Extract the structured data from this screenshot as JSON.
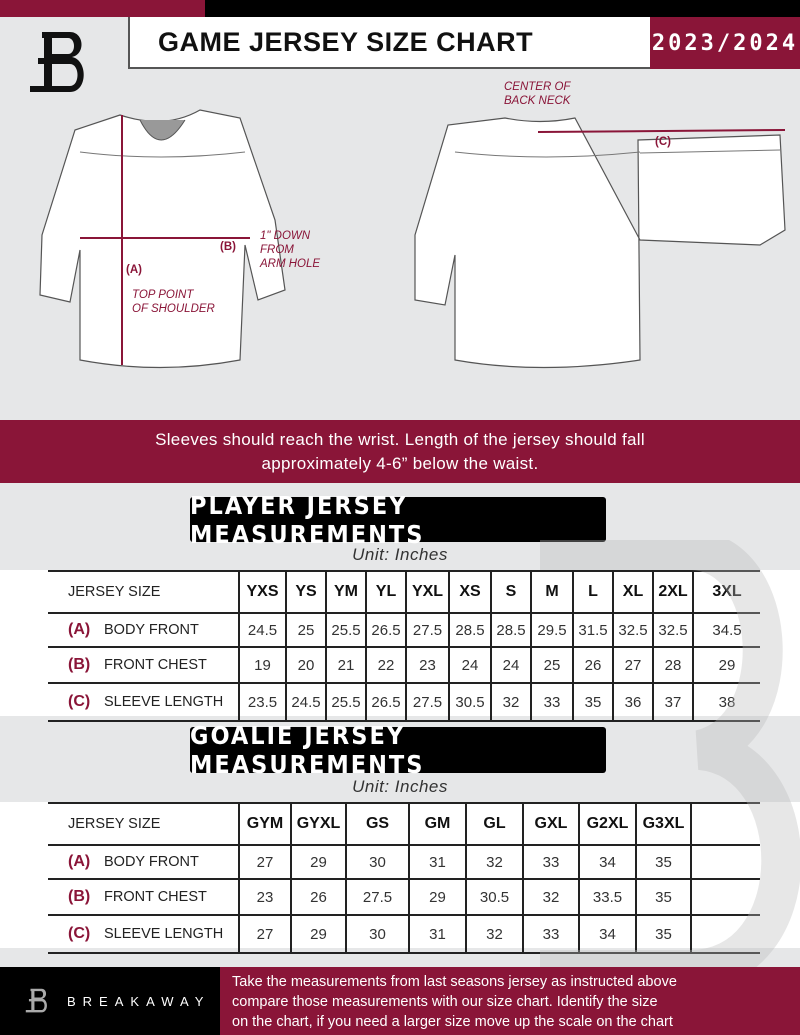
{
  "header": {
    "title": "GAME JERSEY SIZE CHART",
    "season": "2023/2024",
    "logo_icon": "breakaway-b-logo"
  },
  "diagram": {
    "front_labels": {
      "a": "(A)",
      "b": "(B)",
      "arm_note": [
        "1\" DOWN",
        "FROM",
        "ARM HOLE"
      ],
      "shoulder_note": [
        "TOP POINT",
        "OF SHOULDER"
      ]
    },
    "back_labels": {
      "c": "(C)",
      "neck_note": [
        "CENTER OF",
        "BACK NECK"
      ]
    }
  },
  "banner": {
    "lines": [
      "Sleeves should reach the wrist. Length of the jersey should fall",
      "approximately 4-6” below the waist."
    ]
  },
  "player": {
    "heading": "PLAYER JERSEY MEASUREMENTS",
    "unit": "Unit: Inches",
    "size_label": "JERSEY SIZE",
    "sizes": [
      "YXS",
      "YS",
      "YM",
      "YL",
      "YXL",
      "XS",
      "S",
      "M",
      "L",
      "XL",
      "2XL",
      "3XL"
    ],
    "rows": [
      {
        "letter": "(A)",
        "label": "BODY FRONT",
        "values": [
          "24.5",
          "25",
          "25.5",
          "26.5",
          "27.5",
          "28.5",
          "28.5",
          "29.5",
          "31.5",
          "32.5",
          "32.5",
          "34.5"
        ]
      },
      {
        "letter": "(B)",
        "label": "FRONT CHEST",
        "values": [
          "19",
          "20",
          "21",
          "22",
          "23",
          "24",
          "24",
          "25",
          "26",
          "27",
          "28",
          "29"
        ]
      },
      {
        "letter": "(C)",
        "label": "SLEEVE LENGTH",
        "values": [
          "23.5",
          "24.5",
          "25.5",
          "26.5",
          "27.5",
          "30.5",
          "32",
          "33",
          "35",
          "36",
          "37",
          "38"
        ]
      }
    ]
  },
  "goalie": {
    "heading": "GOALIE JERSEY MEASUREMENTS",
    "unit": "Unit: Inches",
    "size_label": "JERSEY SIZE",
    "sizes": [
      "GYM",
      "GYXL",
      "GS",
      "GM",
      "GL",
      "GXL",
      "G2XL",
      "G3XL",
      ""
    ],
    "rows": [
      {
        "letter": "(A)",
        "label": "BODY FRONT",
        "values": [
          "27",
          "29",
          "30",
          "31",
          "32",
          "33",
          "34",
          "35",
          ""
        ]
      },
      {
        "letter": "(B)",
        "label": "FRONT CHEST",
        "values": [
          "23",
          "26",
          "27.5",
          "29",
          "30.5",
          "32",
          "33.5",
          "35",
          ""
        ]
      },
      {
        "letter": "(C)",
        "label": "SLEEVE LENGTH",
        "values": [
          "27",
          "29",
          "30",
          "31",
          "32",
          "33",
          "34",
          "35",
          ""
        ]
      }
    ]
  },
  "footer": {
    "brand": "BREAKAWAY",
    "text": [
      "Take the measurements from last seasons jersey as instructed above",
      "compare those measurements  with our size chart. Identify the size",
      "on the chart, if you need a larger size move up the scale on the chart"
    ]
  },
  "colors": {
    "accent": "#8a1538",
    "black": "#000000",
    "background": "#e6e7e8"
  }
}
